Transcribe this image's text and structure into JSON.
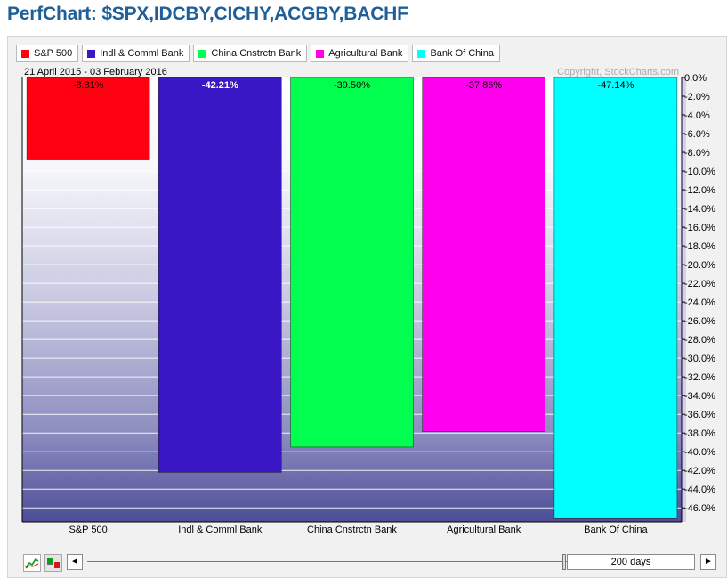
{
  "title": "PerfChart: $SPX,IDCBY,CICHY,ACGBY,BACHF",
  "date_range": "21 April 2015 - 03 February 2016",
  "copyright": "Copyright, StockCharts.com",
  "legend": [
    {
      "label": "S&P 500",
      "color": "#ff0010"
    },
    {
      "label": "Indl & Comml Bank",
      "color": "#3a17c4"
    },
    {
      "label": "China Cnstrctn Bank",
      "color": "#00ff4e"
    },
    {
      "label": "Agricultural Bank",
      "color": "#ff00ee"
    },
    {
      "label": "Bank Of China",
      "color": "#00ffff"
    }
  ],
  "controls": {
    "days_label": "200 days",
    "left_arrow": "◄",
    "right_arrow": "►",
    "line_chart_icon": "line-chart-icon",
    "bar_chart_icon": "bar-chart-icon"
  },
  "chart_data": {
    "type": "bar",
    "categories": [
      "S&P 500",
      "Indl & Comml Bank",
      "China Cnstrctn Bank",
      "Agricultural Bank",
      "Bank Of China"
    ],
    "values": [
      -8.81,
      -42.21,
      -39.5,
      -37.86,
      -47.14
    ],
    "value_labels": [
      "-8.81%",
      "-42.21%",
      "-39.50%",
      "-37.86%",
      "-47.14%"
    ],
    "colors": [
      "#ff0010",
      "#3a17c4",
      "#00ff4e",
      "#ff00ee",
      "#00ffff"
    ],
    "ylim": [
      -47.5,
      0
    ],
    "yticks": [
      0,
      -2,
      -4,
      -6,
      -8,
      -10,
      -12,
      -14,
      -16,
      -18,
      -20,
      -22,
      -24,
      -26,
      -28,
      -30,
      -32,
      -34,
      -36,
      -38,
      -40,
      -42,
      -44,
      -46
    ],
    "ytick_labels": [
      "0.0%",
      "-2.0%",
      "-4.0%",
      "-6.0%",
      "-8.0%",
      "-10.0%",
      "-12.0%",
      "-14.0%",
      "-16.0%",
      "-18.0%",
      "-20.0%",
      "-22.0%",
      "-24.0%",
      "-26.0%",
      "-28.0%",
      "-30.0%",
      "-32.0%",
      "-34.0%",
      "-36.0%",
      "-38.0%",
      "-40.0%",
      "-42.0%",
      "-44.0%",
      "-46.0%"
    ],
    "y_axis_side": "right",
    "grid": true,
    "legend_position": "top-left"
  }
}
